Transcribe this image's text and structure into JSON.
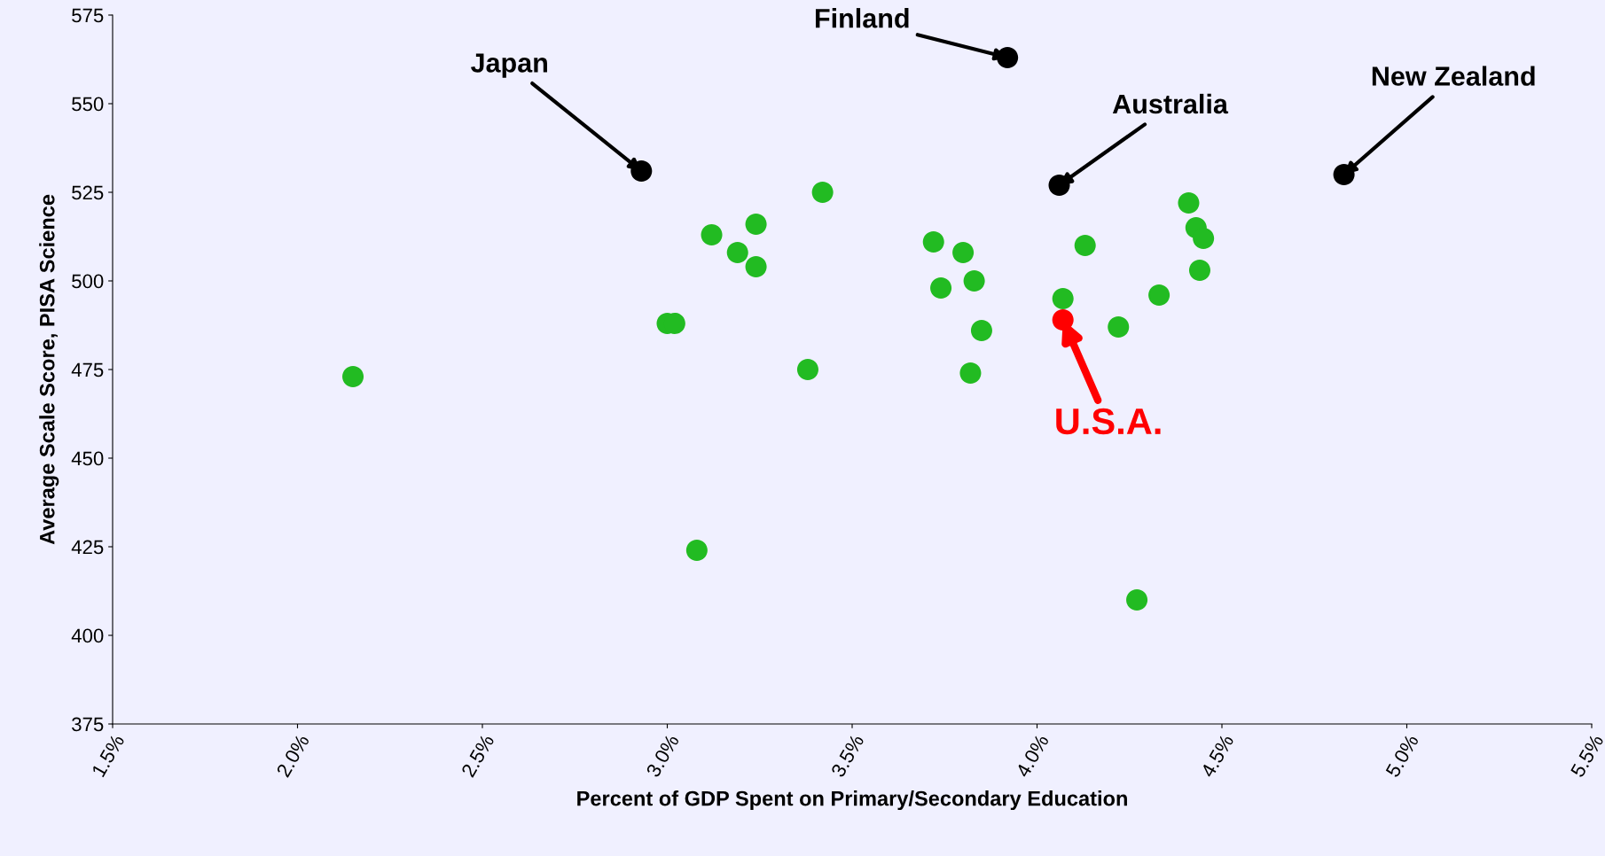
{
  "chart_data": {
    "type": "scatter",
    "xlabel": "Percent of GDP Spent on Primary/Secondary Education",
    "ylabel": "Average Scale Score, PISA Science",
    "xlim": [
      1.5,
      5.5
    ],
    "xticks": [
      {
        "value": 1.5,
        "label": "1.5%"
      },
      {
        "value": 2.0,
        "label": "2.0%"
      },
      {
        "value": 2.5,
        "label": "2.5%"
      },
      {
        "value": 3.0,
        "label": "3.0%"
      },
      {
        "value": 3.5,
        "label": "3.5%"
      },
      {
        "value": 4.0,
        "label": "4.0%"
      },
      {
        "value": 4.5,
        "label": "4.5%"
      },
      {
        "value": 5.0,
        "label": "5.0%"
      },
      {
        "value": 5.5,
        "label": "5.5%"
      }
    ],
    "ylim": [
      375,
      575
    ],
    "yticks": [
      375,
      400,
      425,
      450,
      475,
      500,
      525,
      550,
      575
    ],
    "grid": false,
    "marker": "circle",
    "series": [
      {
        "color": "#22bb22",
        "x": [
          2.15,
          3.0,
          3.02,
          3.08,
          3.12,
          3.19,
          3.24,
          3.24,
          3.38,
          3.42,
          3.72,
          3.74,
          3.8,
          3.83,
          3.85,
          3.82,
          4.07,
          4.13,
          4.22,
          4.27,
          4.33,
          4.41,
          4.43,
          4.45,
          4.44
        ],
        "values": [
          473,
          488,
          488,
          424,
          513,
          508,
          516,
          504,
          475,
          525,
          511,
          498,
          508,
          500,
          486,
          474,
          495,
          510,
          487,
          410,
          496,
          522,
          515,
          512,
          503
        ]
      },
      {
        "color": "#000000",
        "x": [
          2.93,
          3.92,
          4.06,
          4.83
        ],
        "values": [
          531,
          563,
          527,
          530
        ]
      },
      {
        "color": "#ff0000",
        "x": [
          4.07
        ],
        "values": [
          489
        ]
      }
    ],
    "annotations": [
      {
        "text": "Japan",
        "x": 2.93,
        "y": 531
      },
      {
        "text": "Finland",
        "x": 3.92,
        "y": 563
      },
      {
        "text": "Australia",
        "x": 4.06,
        "y": 527
      },
      {
        "text": "New Zealand",
        "x": 4.83,
        "y": 530
      },
      {
        "text": "U.S.A.",
        "x": 4.07,
        "y": 489
      }
    ]
  }
}
